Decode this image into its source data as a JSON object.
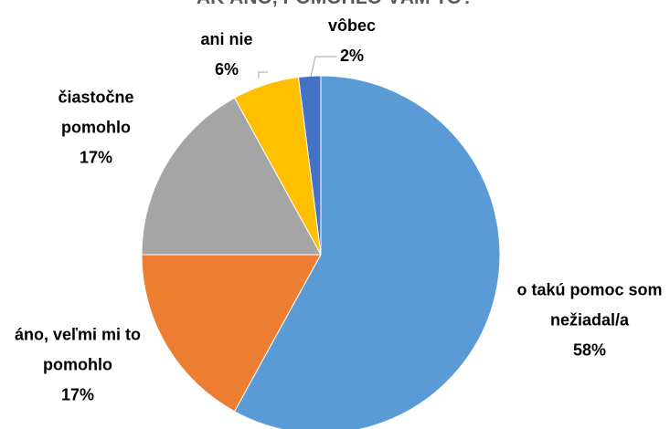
{
  "chart_data": {
    "type": "pie",
    "title": "AK ÁNO, POMOHLO VÁM TO?",
    "categories": [
      "o takú pomoc som nežiadal/a",
      "áno, veľmi mi to pomohlo",
      "čiastočne pomohlo",
      "ani nie",
      "vôbec"
    ],
    "values": [
      58,
      17,
      17,
      6,
      2
    ],
    "value_labels": [
      "58%",
      "17%",
      "17%",
      "6%",
      "2%"
    ],
    "colors": [
      "#5b9bd5",
      "#ed7d31",
      "#a5a5a5",
      "#ffc000",
      "#4472c4"
    ]
  }
}
